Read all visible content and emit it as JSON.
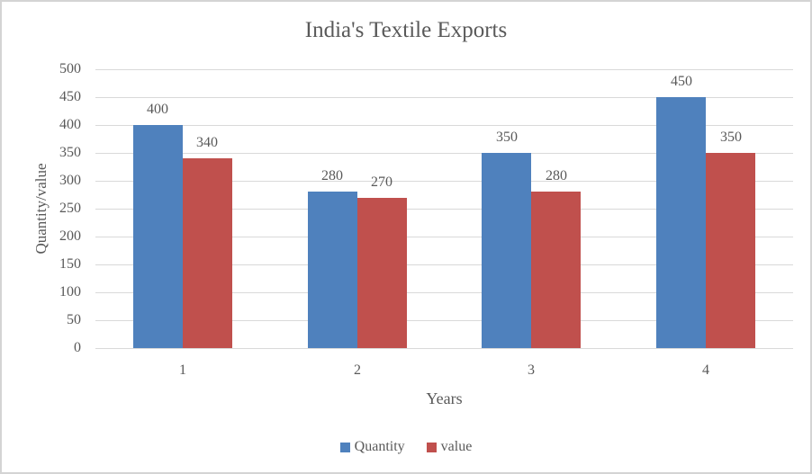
{
  "chart_data": {
    "type": "bar",
    "title": "India's Textile Exports",
    "xlabel": "Years",
    "ylabel": "Quantity/value",
    "categories": [
      "1",
      "2",
      "3",
      "4"
    ],
    "series": [
      {
        "name": "Quantity",
        "color": "#4F81BD",
        "values": [
          400,
          280,
          350,
          450
        ]
      },
      {
        "name": "value",
        "color": "#C0504D",
        "values": [
          340,
          270,
          280,
          350
        ]
      }
    ],
    "ylim": [
      0,
      500
    ],
    "yticks": [
      0,
      50,
      100,
      150,
      200,
      250,
      300,
      350,
      400,
      450,
      500
    ],
    "grid": true,
    "legend_position": "bottom",
    "data_labels": true
  },
  "colors": {
    "text": "#595959",
    "gridline": "#D9D9D9",
    "frame_border": "#D4D4D4",
    "background": "#FFFFFF"
  }
}
